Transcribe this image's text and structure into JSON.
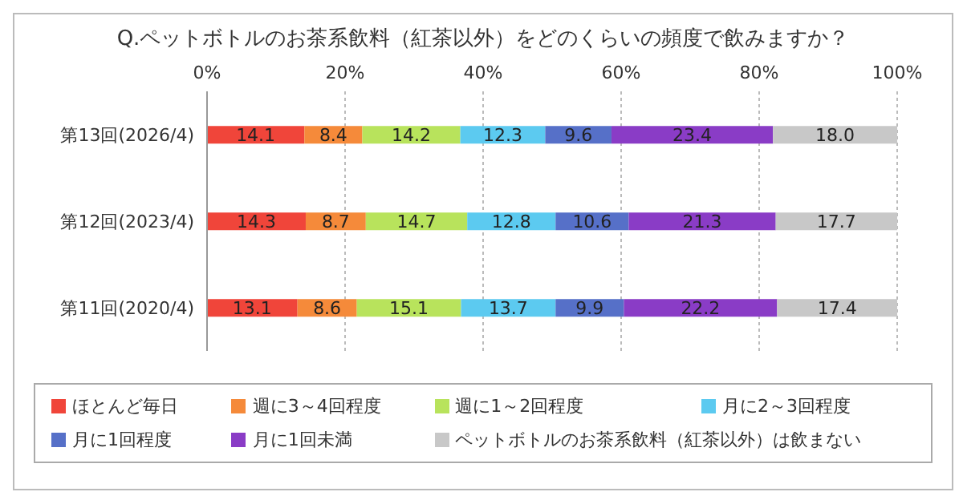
{
  "chart_data": {
    "type": "bar",
    "orientation": "horizontal",
    "stacked": true,
    "title": "Q.ペットボトルのお茶系飲料（紅茶以外）をどのくらいの頻度で飲みますか？",
    "categories": [
      "第13回(2026/4)",
      "第12回(2023/4)",
      "第11回(2020/4)"
    ],
    "xlim": [
      0,
      100
    ],
    "xticks": [
      {
        "value": 0,
        "label": "0%"
      },
      {
        "value": 20,
        "label": "20%"
      },
      {
        "value": 40,
        "label": "40%"
      },
      {
        "value": 60,
        "label": "60%"
      },
      {
        "value": 80,
        "label": "80%"
      },
      {
        "value": 100,
        "label": "100%"
      }
    ],
    "grid": "x",
    "legend": "bottom",
    "series": [
      {
        "name": "ほとんど毎日",
        "color": "#f0453a",
        "values": [
          14.1,
          14.3,
          13.1
        ],
        "value_labels": [
          "14.1",
          "14.3",
          "13.1"
        ]
      },
      {
        "name": "週に3～4回程度",
        "color": "#f58a3a",
        "values": [
          8.4,
          8.7,
          8.6
        ],
        "value_labels": [
          "8.4",
          "8.7",
          "8.6"
        ]
      },
      {
        "name": "週に1～2回程度",
        "color": "#b8e35c",
        "values": [
          14.2,
          14.7,
          15.1
        ],
        "value_labels": [
          "14.2",
          "14.7",
          "15.1"
        ]
      },
      {
        "name": "月に2～3回程度",
        "color": "#5ccaf0",
        "values": [
          12.3,
          12.8,
          13.7
        ],
        "value_labels": [
          "12.3",
          "12.8",
          "13.7"
        ]
      },
      {
        "name": "月に1回程度",
        "color": "#5670c8",
        "values": [
          9.6,
          10.6,
          9.9
        ],
        "value_labels": [
          "9.6",
          "10.6",
          "9.9"
        ]
      },
      {
        "name": "月に1回未満",
        "color": "#8a3cc6",
        "values": [
          23.4,
          21.3,
          22.2
        ],
        "value_labels": [
          "23.4",
          "21.3",
          "22.2"
        ]
      },
      {
        "name": "ペットボトルのお茶系飲料（紅茶以外）は飲まない",
        "color": "#c8c8c8",
        "values": [
          18.0,
          17.7,
          17.4
        ],
        "value_labels": [
          "18.0",
          "17.7",
          "17.4"
        ]
      }
    ]
  }
}
